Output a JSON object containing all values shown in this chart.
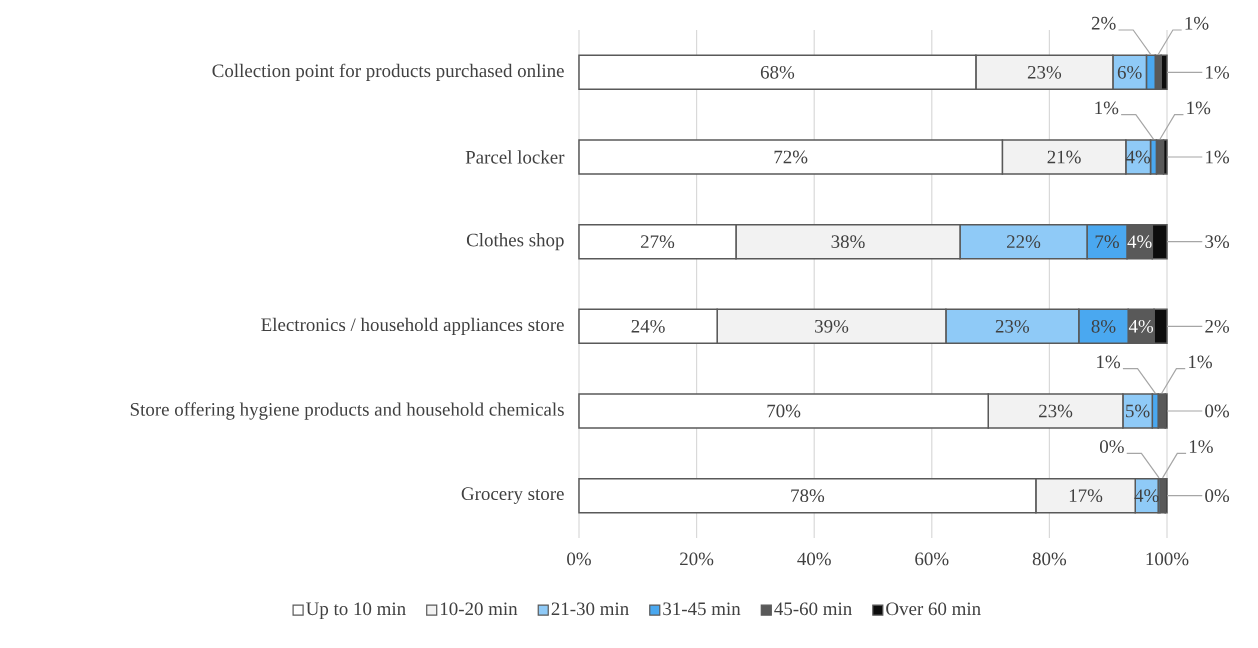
{
  "chart_data": {
    "type": "bar",
    "orientation": "horizontal",
    "stacked": true,
    "categories": [
      "Collection point for products purchased online",
      "Parcel locker",
      "Clothes shop",
      "Electronics / household appliances store",
      "Store offering hygiene products and household chemicals",
      "Grocery store"
    ],
    "series": [
      {
        "name": "Up to 10 min",
        "color": "#ffffff",
        "values": [
          67.5,
          72,
          26.7,
          23.5,
          69.6,
          77.7
        ],
        "value_labels": [
          "68%",
          "72%",
          "27%",
          "24%",
          "70%",
          "78%"
        ]
      },
      {
        "name": "10-20 min",
        "color": "#f2f2f2",
        "values": [
          23.3,
          21,
          38.1,
          38.9,
          22.9,
          16.9
        ],
        "value_labels": [
          "23%",
          "21%",
          "38%",
          "39%",
          "23%",
          "17%"
        ]
      },
      {
        "name": "21-30 min",
        "color": "#8fcaf7",
        "values": [
          5.7,
          4.2,
          21.6,
          22.6,
          5.0,
          3.9
        ],
        "value_labels": [
          "6%",
          "4%",
          "22%",
          "23%",
          "5%",
          "4%"
        ]
      },
      {
        "name": "31-45 min",
        "color": "#4aa8f0",
        "values": [
          1.5,
          1.0,
          6.8,
          8.4,
          1.0,
          0.3
        ],
        "value_labels": [
          "2%",
          "1%",
          "7%",
          "8%",
          "1%",
          "0%"
        ]
      },
      {
        "name": "45-60 min",
        "color": "#595959",
        "values": [
          1.0,
          1.2,
          4.3,
          4.4,
          1.2,
          0.9
        ],
        "value_labels": [
          "1%",
          "1%",
          "4%",
          "4%",
          "1%",
          "1%"
        ]
      },
      {
        "name": "Over 60 min",
        "color": "#0d0d0d",
        "values": [
          1.0,
          0.6,
          2.5,
          2.2,
          0.3,
          0.3
        ],
        "value_labels": [
          "1%",
          "1%",
          "3%",
          "2%",
          "0%",
          "0%"
        ]
      }
    ],
    "xlim": [
      0,
      100
    ],
    "xticks": [
      {
        "value": 0,
        "label": "0%"
      },
      {
        "value": 20,
        "label": "20%"
      },
      {
        "value": 40,
        "label": "40%"
      },
      {
        "value": 60,
        "label": "60%"
      },
      {
        "value": 80,
        "label": "80%"
      },
      {
        "value": 100,
        "label": "100%"
      }
    ],
    "grid": "x",
    "legend": "bottom"
  }
}
